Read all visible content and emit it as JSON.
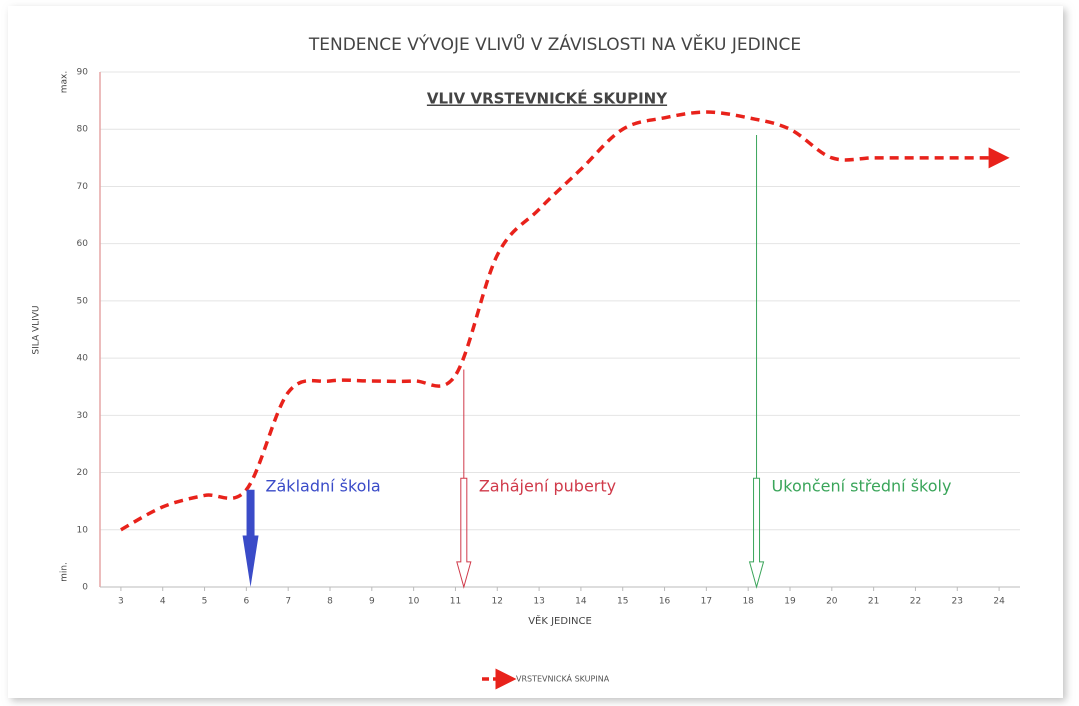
{
  "chart_data": {
    "type": "line",
    "title": "TENDENCE VÝVOJE VLIVŮ V ZÁVISLOSTI NA VĚKU JEDINCE",
    "subtitle": "VLIV VRSTEVNICKÉ SKUPINY",
    "x_label": "VĚK JEDINCE",
    "y_label": "SILA VLIVU",
    "y_max_label": "max.",
    "y_min_label": "min.",
    "x": [
      3,
      4,
      5,
      6,
      7,
      8,
      9,
      10,
      11,
      12,
      13,
      14,
      15,
      16,
      17,
      18,
      19,
      20,
      21,
      22,
      23,
      24
    ],
    "series": [
      {
        "name": "VRSTEVNICKÁ SKUPINA",
        "color": "#e8221b",
        "values": [
          10,
          14,
          16,
          17,
          34,
          36,
          36,
          36,
          37,
          58,
          66,
          73,
          80,
          82,
          83,
          82,
          80,
          75,
          75,
          75,
          75,
          75
        ]
      }
    ],
    "xlim": [
      2.5,
      24.5
    ],
    "xticks": [
      3,
      4,
      5,
      6,
      7,
      8,
      9,
      10,
      11,
      12,
      13,
      14,
      15,
      16,
      17,
      18,
      19,
      20,
      21,
      22,
      23,
      24
    ],
    "ylim": [
      0,
      90
    ],
    "yticks": [
      0,
      10,
      20,
      30,
      40,
      50,
      60,
      70,
      80,
      90
    ],
    "grid": true,
    "legend": "bottom",
    "annotations": [
      {
        "text": "Základní škola",
        "x": 6.1,
        "y": 17,
        "color": "#3a4bc8",
        "style": "filled"
      },
      {
        "text": "Zahájení puberty",
        "x": 11.2,
        "y": 38,
        "color": "#d03a4a",
        "style": "hollow"
      },
      {
        "text": "Ukončení střední školy",
        "x": 18.2,
        "y": 79,
        "color": "#3aa55a",
        "style": "hollow"
      }
    ]
  }
}
